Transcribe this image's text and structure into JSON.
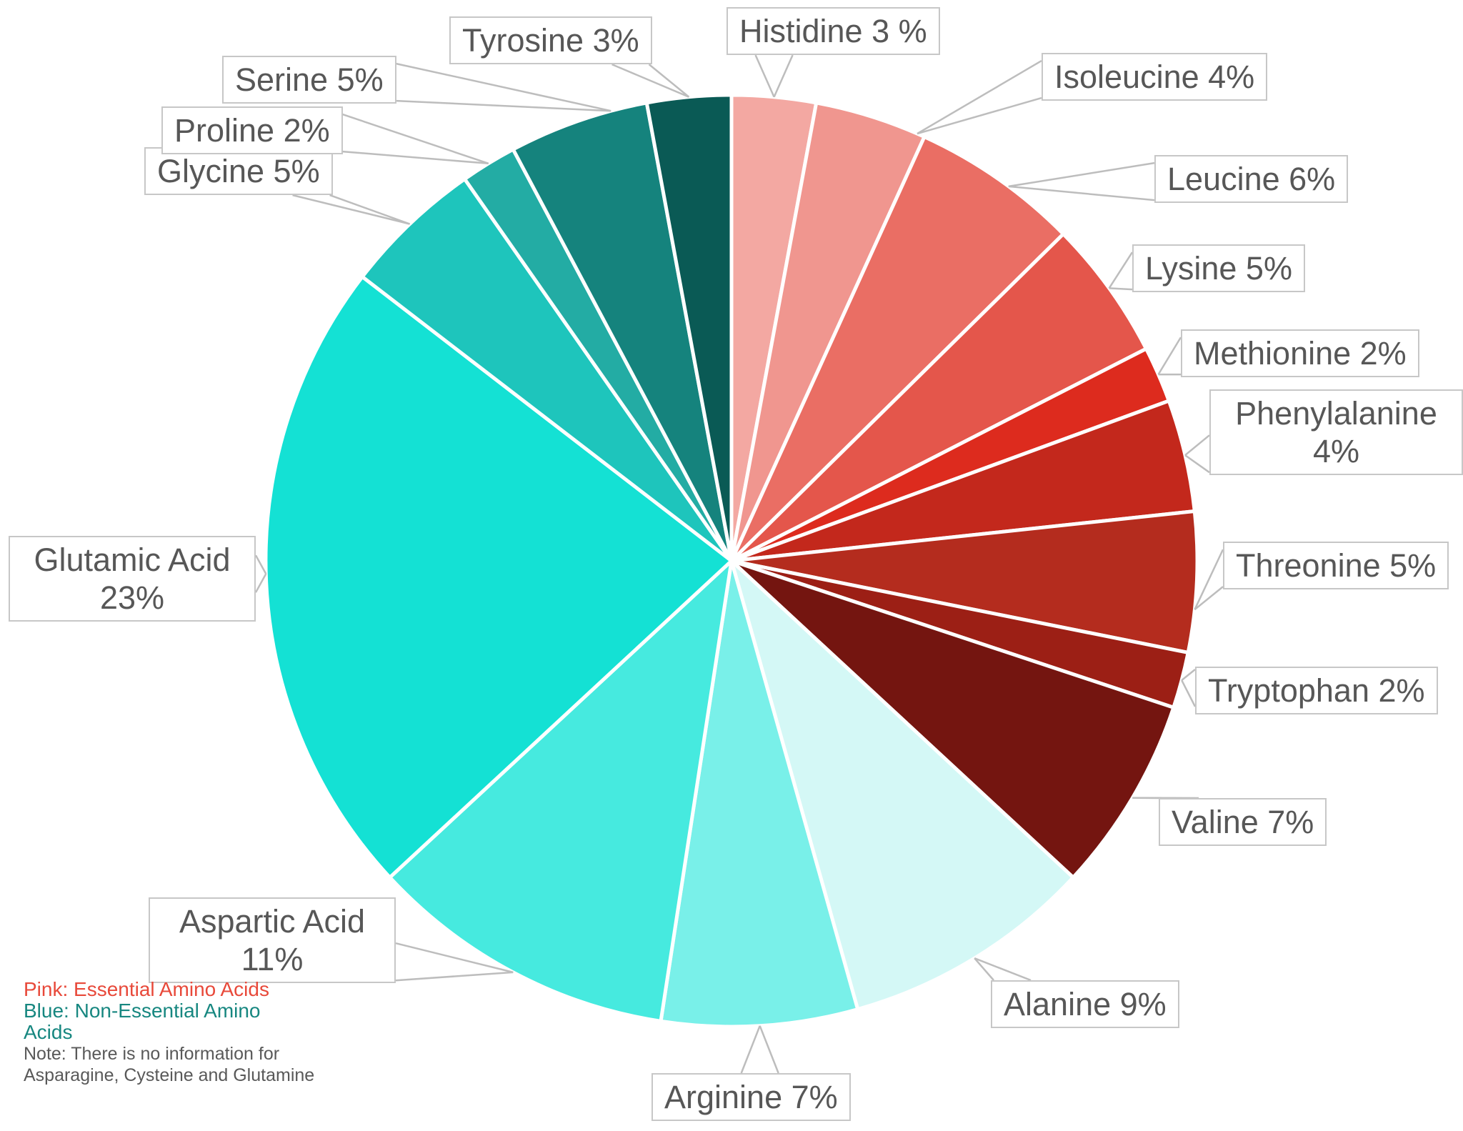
{
  "chart_data": {
    "type": "pie",
    "title": "",
    "start_angle_deg": 0,
    "direction": "clockwise",
    "unit": "%",
    "legend_position": "bottom-left",
    "slices": [
      {
        "name": "Histidine",
        "value": 3,
        "display": "Histidine 3 %",
        "color": "#F3A8A2",
        "group": "Essential Amino Acids"
      },
      {
        "name": "Isoleucine",
        "value": 4,
        "display": "Isoleucine 4%",
        "color": "#F0968F",
        "group": "Essential Amino Acids"
      },
      {
        "name": "Leucine",
        "value": 6,
        "display": "Leucine 6%",
        "color": "#EA6E64",
        "group": "Essential Amino Acids"
      },
      {
        "name": "Lysine",
        "value": 5,
        "display": "Lysine 5%",
        "color": "#E4564B",
        "group": "Essential Amino Acids"
      },
      {
        "name": "Methionine",
        "value": 2,
        "display": "Methionine 2%",
        "color": "#DD2B1E",
        "group": "Essential Amino Acids"
      },
      {
        "name": "Phenylalanine",
        "value": 4,
        "display": "Phenylalanine 4%",
        "color": "#C3281C",
        "group": "Essential Amino Acids"
      },
      {
        "name": "Threonine",
        "value": 5,
        "display": "Threonine 5%",
        "color": "#B42C1E",
        "group": "Essential Amino Acids"
      },
      {
        "name": "Tryptophan",
        "value": 2,
        "display": "Tryptophan 2%",
        "color": "#9C1F15",
        "group": "Essential Amino Acids"
      },
      {
        "name": "Valine",
        "value": 7,
        "display": "Valine 7%",
        "color": "#741510",
        "group": "Essential Amino Acids"
      },
      {
        "name": "Alanine",
        "value": 9,
        "display": "Alanine 9%",
        "color": "#D4F8F6",
        "group": "Non-Essential Amino Acids"
      },
      {
        "name": "Arginine",
        "value": 7,
        "display": "Arginine 7%",
        "color": "#79F0E9",
        "group": "Non-Essential Amino Acids"
      },
      {
        "name": "Aspartic Acid",
        "value": 11,
        "display": "Aspartic Acid 11%",
        "color": "#46EADF",
        "group": "Non-Essential Amino Acids"
      },
      {
        "name": "Glutamic Acid",
        "value": 23,
        "display": "Glutamic Acid 23%",
        "color": "#14E1D4",
        "group": "Non-Essential Amino Acids"
      },
      {
        "name": "Glycine",
        "value": 5,
        "display": "Glycine 5%",
        "color": "#1EC5BC",
        "group": "Non-Essential Amino Acids"
      },
      {
        "name": "Proline",
        "value": 2,
        "display": "Proline 2%",
        "color": "#23ACA4",
        "group": "Non-Essential Amino Acids"
      },
      {
        "name": "Serine",
        "value": 5,
        "display": "Serine 5%",
        "color": "#15837D",
        "group": "Non-Essential Amino Acids"
      },
      {
        "name": "Tyrosine",
        "value": 3,
        "display": "Tyrosine 3%",
        "color": "#0A5A55",
        "group": "Non-Essential Amino Acids"
      }
    ]
  },
  "legend": {
    "pink_label": "Pink: Essential Amino Acids",
    "blue_label": "Blue: Non-Essential Amino Acids",
    "note_lines": [
      "Note: There is no information for",
      "Asparagine, Cysteine and Glutamine"
    ],
    "pink_color": "#E8493A",
    "blue_color": "#178780"
  }
}
